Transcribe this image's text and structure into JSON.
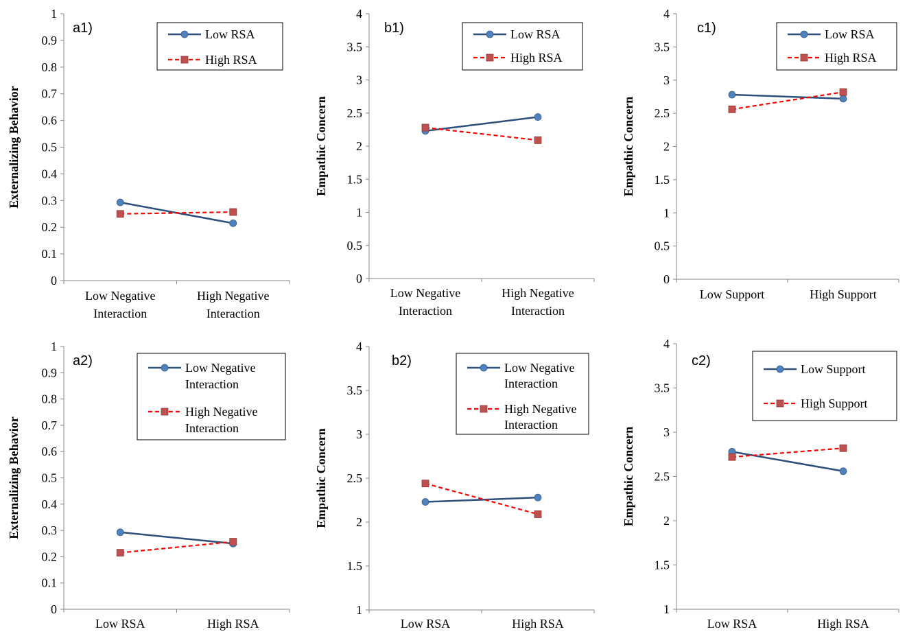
{
  "chart_data": [
    {
      "type": "line",
      "panel": "a1)",
      "ylabel": "Externalizing Behavior",
      "ylim": [
        0,
        1
      ],
      "yticks": [
        0,
        0.1,
        0.2,
        0.3,
        0.4,
        0.5,
        0.6,
        0.7,
        0.8,
        0.9,
        1
      ],
      "ytick_labels": [
        "0",
        "0.1",
        "0.2",
        "0.3",
        "0.4",
        "0.5",
        "0.6",
        "0.7",
        "0.8",
        "0.9",
        "1"
      ],
      "categories": [
        [
          "Low Negative",
          "Interaction"
        ],
        [
          "High Negative",
          "Interaction"
        ]
      ],
      "legend_position": "top-right",
      "series": [
        {
          "name": [
            "Low RSA"
          ],
          "values": [
            0.293,
            0.215
          ],
          "color": "#4f81bd",
          "line_color": "#2c4f7c",
          "marker": "circle",
          "dash": false
        },
        {
          "name": [
            "High RSA"
          ],
          "values": [
            0.25,
            0.257
          ],
          "color": "#c0504d",
          "line_color": "#ff0000",
          "marker": "square",
          "dash": true
        }
      ]
    },
    {
      "type": "line",
      "panel": "b1)",
      "ylabel": "Empathic Concern",
      "ylim": [
        0,
        4
      ],
      "yticks": [
        0,
        0.5,
        1,
        1.5,
        2,
        2.5,
        3,
        3.5,
        4
      ],
      "ytick_labels": [
        "0",
        "0.5",
        "1",
        "1.5",
        "2",
        "2.5",
        "3",
        "3.5",
        "4"
      ],
      "categories": [
        [
          "Low Negative",
          "Interaction"
        ],
        [
          "High Negative",
          "Interaction"
        ]
      ],
      "legend_position": "top-right",
      "series": [
        {
          "name": [
            "Low RSA"
          ],
          "values": [
            2.23,
            2.44
          ],
          "color": "#4f81bd",
          "line_color": "#2c4f7c",
          "marker": "circle",
          "dash": false
        },
        {
          "name": [
            "High RSA"
          ],
          "values": [
            2.28,
            2.09
          ],
          "color": "#c0504d",
          "line_color": "#ff0000",
          "marker": "square",
          "dash": true
        }
      ]
    },
    {
      "type": "line",
      "panel": "c1)",
      "ylabel": "Empathic Concern",
      "ylim": [
        0,
        4
      ],
      "yticks": [
        0,
        0.5,
        1,
        1.5,
        2,
        2.5,
        3,
        3.5,
        4
      ],
      "ytick_labels": [
        "0",
        "0.5",
        "1",
        "1.5",
        "2",
        "2.5",
        "3",
        "3.5",
        "4"
      ],
      "categories": [
        [
          "Low Support"
        ],
        [
          "High Support"
        ]
      ],
      "legend_position": "top-right",
      "series": [
        {
          "name": [
            "Low RSA"
          ],
          "values": [
            2.78,
            2.72
          ],
          "color": "#4f81bd",
          "line_color": "#2c4f7c",
          "marker": "circle",
          "dash": false
        },
        {
          "name": [
            "High RSA"
          ],
          "values": [
            2.56,
            2.82
          ],
          "color": "#c0504d",
          "line_color": "#ff0000",
          "marker": "square",
          "dash": true
        }
      ]
    },
    {
      "type": "line",
      "panel": "a2)",
      "ylabel": "Externalizing Behavior",
      "ylim": [
        0,
        1
      ],
      "yticks": [
        0,
        0.1,
        0.2,
        0.3,
        0.4,
        0.5,
        0.6,
        0.7,
        0.8,
        0.9,
        1
      ],
      "ytick_labels": [
        "0",
        "0.1",
        "0.2",
        "0.3",
        "0.4",
        "0.5",
        "0.6",
        "0.7",
        "0.8",
        "0.9",
        "1"
      ],
      "categories": [
        [
          "Low RSA"
        ],
        [
          "High RSA"
        ]
      ],
      "legend_position": "top-right",
      "series": [
        {
          "name": [
            "Low Negative",
            "Interaction"
          ],
          "values": [
            0.293,
            0.25
          ],
          "color": "#4f81bd",
          "line_color": "#2c4f7c",
          "marker": "circle",
          "dash": false
        },
        {
          "name": [
            "High Negative",
            "Interaction"
          ],
          "values": [
            0.215,
            0.257
          ],
          "color": "#c0504d",
          "line_color": "#ff0000",
          "marker": "square",
          "dash": true
        }
      ]
    },
    {
      "type": "line",
      "panel": "b2)",
      "ylabel": "Empathic Concern",
      "ylim": [
        1,
        4
      ],
      "yticks": [
        1,
        1.5,
        2,
        2.5,
        3,
        3.5,
        4
      ],
      "ytick_labels": [
        "1",
        "1.5",
        "2",
        "2.5",
        "3",
        "3.5",
        "4"
      ],
      "categories": [
        [
          "Low RSA"
        ],
        [
          "High RSA"
        ]
      ],
      "legend_position": "top-right",
      "series": [
        {
          "name": [
            "Low Negative",
            "Interaction"
          ],
          "values": [
            2.23,
            2.28
          ],
          "color": "#4f81bd",
          "line_color": "#2c4f7c",
          "marker": "circle",
          "dash": false
        },
        {
          "name": [
            "High Negative",
            "Interaction"
          ],
          "values": [
            2.44,
            2.09
          ],
          "color": "#c0504d",
          "line_color": "#ff0000",
          "marker": "square",
          "dash": true
        }
      ]
    },
    {
      "type": "line",
      "panel": "c2)",
      "ylabel": "Empathic Concern",
      "ylim": [
        1,
        4
      ],
      "yticks": [
        1,
        1.5,
        2,
        2.5,
        3,
        3.5,
        4
      ],
      "ytick_labels": [
        "1",
        "1.5",
        "2",
        "2.5",
        "3",
        "3.5",
        "4"
      ],
      "categories": [
        [
          "Low RSA"
        ],
        [
          "High RSA"
        ]
      ],
      "legend_position": "top-right",
      "series": [
        {
          "name": [
            "Low Support"
          ],
          "values": [
            2.78,
            2.56
          ],
          "color": "#4f81bd",
          "line_color": "#2c4f7c",
          "marker": "circle",
          "dash": false
        },
        {
          "name": [
            "High Support"
          ],
          "values": [
            2.72,
            2.82
          ],
          "color": "#c0504d",
          "line_color": "#ff0000",
          "marker": "square",
          "dash": true
        }
      ]
    }
  ]
}
